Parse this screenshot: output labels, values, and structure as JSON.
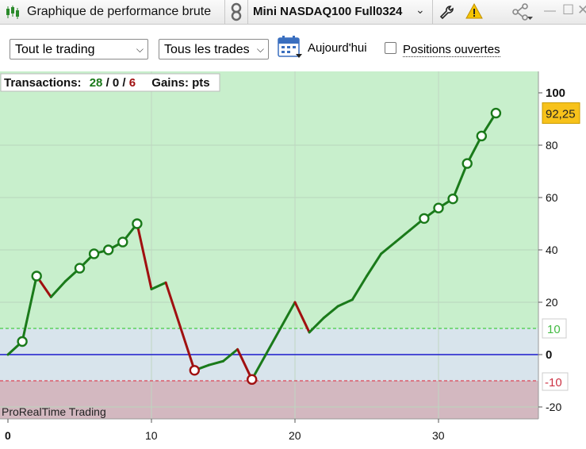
{
  "window": {
    "title": "Graphique de performance brute",
    "instrument": "Mini NASDAQ100 Full0324"
  },
  "toolbar": {
    "scope_select": "Tout le trading",
    "trades_select": "Tous les trades",
    "date_label": "Aujourd'hui",
    "open_positions_label": "Positions ouvertes",
    "open_positions_checked": false
  },
  "info": {
    "transactions_label": "Transactions:",
    "wins": "28",
    "neutral": "0",
    "losses": "6",
    "gains_label": "Gains: pts"
  },
  "colors": {
    "win": "#1a7a1a",
    "loss": "#a01010",
    "zero_line": "#1a1acc",
    "last_badge": "#f7c21b",
    "positive_zone": "#c8efcc",
    "neutral_zone": "#d8e4ec",
    "negative_zone": "#d3b8c0"
  },
  "chart_data": {
    "type": "line",
    "watermark": "ProRealTime Trading",
    "xlim": [
      0,
      37
    ],
    "ylim": [
      -25,
      104
    ],
    "x_ticks": [
      "0",
      "10",
      "20",
      "30"
    ],
    "y_ticks": [
      "100",
      "80",
      "60",
      "40",
      "20",
      "0",
      "-20"
    ],
    "upper_threshold": 10,
    "upper_threshold_label": "10",
    "lower_threshold": -10,
    "lower_threshold_label": "-10",
    "last_value_label": "92,25",
    "points": [
      {
        "x": 0,
        "y": 0,
        "m": false,
        "c": "win"
      },
      {
        "x": 1,
        "y": 5,
        "m": true,
        "c": "win"
      },
      {
        "x": 2,
        "y": 30,
        "m": true,
        "c": "win"
      },
      {
        "x": 3,
        "y": 22,
        "m": false,
        "c": "loss"
      },
      {
        "x": 4,
        "y": 28,
        "m": false,
        "c": "win"
      },
      {
        "x": 5,
        "y": 33,
        "m": true,
        "c": "win"
      },
      {
        "x": 6,
        "y": 38.5,
        "m": true,
        "c": "win"
      },
      {
        "x": 7,
        "y": 40,
        "m": true,
        "c": "win"
      },
      {
        "x": 8,
        "y": 43,
        "m": true,
        "c": "win"
      },
      {
        "x": 9,
        "y": 50,
        "m": true,
        "c": "win"
      },
      {
        "x": 10,
        "y": 25,
        "m": false,
        "c": "loss"
      },
      {
        "x": 11,
        "y": 27.5,
        "m": false,
        "c": "win"
      },
      {
        "x": 13,
        "y": -6,
        "m": true,
        "c": "loss"
      },
      {
        "x": 14,
        "y": -4,
        "m": false,
        "c": "win"
      },
      {
        "x": 15,
        "y": -2.5,
        "m": false,
        "c": "win"
      },
      {
        "x": 16,
        "y": 2,
        "m": false,
        "c": "win"
      },
      {
        "x": 17,
        "y": -9.5,
        "m": true,
        "c": "loss"
      },
      {
        "x": 20,
        "y": 20,
        "m": false,
        "c": "win"
      },
      {
        "x": 21,
        "y": 8.5,
        "m": false,
        "c": "loss"
      },
      {
        "x": 22,
        "y": 14,
        "m": false,
        "c": "win"
      },
      {
        "x": 23,
        "y": 18.5,
        "m": false,
        "c": "win"
      },
      {
        "x": 24,
        "y": 21,
        "m": false,
        "c": "win"
      },
      {
        "x": 25,
        "y": 30,
        "m": false,
        "c": "win"
      },
      {
        "x": 26,
        "y": 38.5,
        "m": false,
        "c": "win"
      },
      {
        "x": 27,
        "y": 43,
        "m": false,
        "c": "win"
      },
      {
        "x": 28,
        "y": 47.5,
        "m": false,
        "c": "win"
      },
      {
        "x": 29,
        "y": 52,
        "m": true,
        "c": "win"
      },
      {
        "x": 30,
        "y": 56,
        "m": true,
        "c": "win"
      },
      {
        "x": 31,
        "y": 59.5,
        "m": true,
        "c": "win"
      },
      {
        "x": 32,
        "y": 73,
        "m": true,
        "c": "win"
      },
      {
        "x": 33,
        "y": 83.5,
        "m": true,
        "c": "win"
      },
      {
        "x": 34,
        "y": 92.25,
        "m": true,
        "c": "win"
      }
    ]
  }
}
